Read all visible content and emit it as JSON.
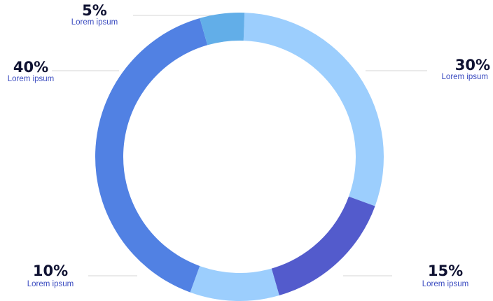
{
  "chart_data": {
    "type": "pie",
    "variant": "donut",
    "title": "",
    "slices": [
      {
        "value": 30,
        "value_label": "30%",
        "label": "Lorem ipsum",
        "color": "#9ccefd"
      },
      {
        "value": 15,
        "value_label": "15%",
        "label": "Lorem ipsum",
        "color": "#535bcc"
      },
      {
        "value": 10,
        "value_label": "10%",
        "label": "Lorem ipsum",
        "color": "#9ccefd"
      },
      {
        "value": 40,
        "value_label": "40%",
        "label": "Lorem ipsum",
        "color": "#5181e3"
      },
      {
        "value": 5,
        "value_label": "5%",
        "label": "Lorem ipsum",
        "color": "#62aee8"
      }
    ],
    "legend": "none"
  }
}
